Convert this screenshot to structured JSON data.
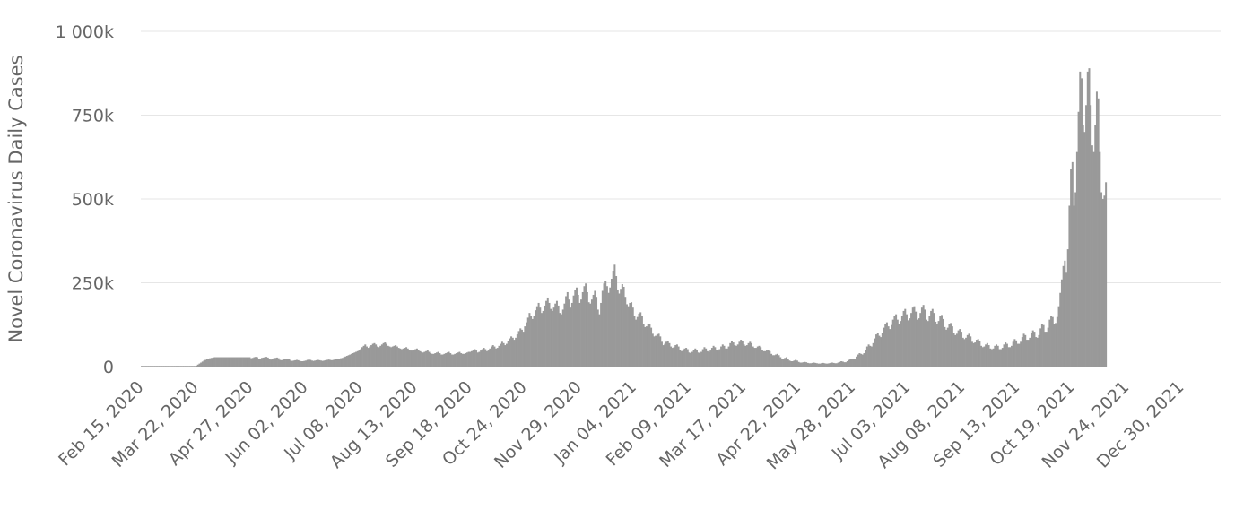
{
  "chart_data": {
    "type": "bar",
    "title": "",
    "xlabel": "",
    "ylabel": "Novel Coronavirus Daily Cases",
    "ylim": [
      0,
      1000000
    ],
    "y_ticks": [
      {
        "value": 0,
        "label": "0"
      },
      {
        "value": 250000,
        "label": "250k"
      },
      {
        "value": 500000,
        "label": "500k"
      },
      {
        "value": 750000,
        "label": "750k"
      },
      {
        "value": 1000000,
        "label": "1 000k"
      }
    ],
    "x_ticks": [
      {
        "date": "2020-02-15",
        "label": "Feb 15, 2020"
      },
      {
        "date": "2020-03-22",
        "label": "Mar 22, 2020"
      },
      {
        "date": "2020-04-27",
        "label": "Apr 27, 2020"
      },
      {
        "date": "2020-06-02",
        "label": "Jun 02, 2020"
      },
      {
        "date": "2020-07-08",
        "label": "Jul 08, 2020"
      },
      {
        "date": "2020-08-13",
        "label": "Aug 13, 2020"
      },
      {
        "date": "2020-09-18",
        "label": "Sep 18, 2020"
      },
      {
        "date": "2020-10-24",
        "label": "Oct 24, 2020"
      },
      {
        "date": "2020-11-29",
        "label": "Nov 29, 2020"
      },
      {
        "date": "2021-01-04",
        "label": "Jan 04, 2021"
      },
      {
        "date": "2021-02-09",
        "label": "Feb 09, 2021"
      },
      {
        "date": "2021-03-17",
        "label": "Mar 17, 2021"
      },
      {
        "date": "2021-04-22",
        "label": "Apr 22, 2021"
      },
      {
        "date": "2021-05-28",
        "label": "May 28, 2021"
      },
      {
        "date": "2021-07-03",
        "label": "Jul 03, 2021"
      },
      {
        "date": "2021-08-08",
        "label": "Aug 08, 2021"
      },
      {
        "date": "2021-09-13",
        "label": "Sep 13, 2021"
      },
      {
        "date": "2021-10-19",
        "label": "Oct 19, 2021"
      },
      {
        "date": "2021-11-24",
        "label": "Nov 24, 2021"
      },
      {
        "date": "2021-12-30",
        "label": "Dec 30, 2021"
      }
    ],
    "grid": true,
    "legend": "none",
    "bar_color": "#999999",
    "series": [
      {
        "x_start": "2020-02-15",
        "x_end": "2022-01-24",
        "sampling": "daily",
        "values": [
          2000,
          2000,
          2000,
          2000,
          2000,
          2000,
          2000,
          2000,
          2000,
          2000,
          2000,
          2000,
          2000,
          2000,
          2000,
          2000,
          2000,
          2000,
          2000,
          2000,
          2000,
          2000,
          2000,
          2000,
          2000,
          2000,
          2000,
          2000,
          2000,
          2000,
          2000,
          2000,
          2000,
          2000,
          2000,
          2000,
          3000,
          6000,
          9000,
          12000,
          15000,
          18000,
          20000,
          22000,
          24000,
          25000,
          26000,
          27000,
          28000,
          28000,
          28000,
          28000,
          28000,
          28000,
          28000,
          28000,
          28000,
          28000,
          28000,
          28000,
          28000,
          28000,
          28000,
          28000,
          28000,
          28000,
          28000,
          28000,
          28000,
          28000,
          28000,
          28000,
          25000,
          26000,
          28000,
          29000,
          28000,
          23000,
          22000,
          26000,
          27000,
          28000,
          29000,
          27000,
          22000,
          21000,
          24000,
          25000,
          26000,
          27000,
          25000,
          20000,
          19000,
          21000,
          22000,
          22000,
          23000,
          22000,
          18000,
          17000,
          18000,
          19000,
          20000,
          19000,
          17000,
          16000,
          16000,
          17000,
          18000,
          20000,
          21000,
          20000,
          18000,
          17000,
          18000,
          19000,
          20000,
          19000,
          18000,
          17000,
          18000,
          19000,
          20000,
          21000,
          20000,
          19000,
          20000,
          21000,
          22000,
          23000,
          24000,
          25000,
          26000,
          28000,
          30000,
          32000,
          34000,
          36000,
          38000,
          40000,
          42000,
          44000,
          46000,
          48000,
          52000,
          58000,
          62000,
          66000,
          60000,
          56000,
          60000,
          64000,
          68000,
          70000,
          66000,
          60000,
          58000,
          62000,
          66000,
          70000,
          72000,
          68000,
          62000,
          60000,
          58000,
          60000,
          62000,
          64000,
          60000,
          56000,
          54000,
          52000,
          54000,
          56000,
          58000,
          54000,
          50000,
          48000,
          48000,
          50000,
          52000,
          54000,
          50000,
          46000,
          44000,
          42000,
          44000,
          46000,
          48000,
          44000,
          40000,
          38000,
          38000,
          40000,
          42000,
          44000,
          40000,
          36000,
          36000,
          38000,
          40000,
          42000,
          44000,
          40000,
          36000,
          36000,
          38000,
          40000,
          42000,
          44000,
          40000,
          38000,
          38000,
          40000,
          42000,
          44000,
          44000,
          46000,
          48000,
          52000,
          48000,
          42000,
          44000,
          48000,
          52000,
          56000,
          52000,
          46000,
          48000,
          54000,
          60000,
          64000,
          60000,
          54000,
          56000,
          62000,
          68000,
          74000,
          70000,
          64000,
          68000,
          76000,
          84000,
          90000,
          86000,
          80000,
          86000,
          96000,
          106000,
          114000,
          110000,
          104000,
          120000,
          132000,
          146000,
          160000,
          150000,
          142000,
          152000,
          168000,
          180000,
          190000,
          176000,
          160000,
          166000,
          182000,
          196000,
          206000,
          190000,
          172000,
          166000,
          176000,
          188000,
          196000,
          182000,
          160000,
          156000,
          170000,
          188000,
          210000,
          222000,
          200000,
          176000,
          190000,
          212000,
          228000,
          236000,
          214000,
          190000,
          200000,
          222000,
          240000,
          248000,
          222000,
          192000,
          188000,
          200000,
          214000,
          226000,
          208000,
          170000,
          156000,
          190000,
          226000,
          248000,
          256000,
          240000,
          220000,
          236000,
          262000,
          286000,
          304000,
          270000,
          230000,
          218000,
          232000,
          246000,
          238000,
          208000,
          186000,
          180000,
          190000,
          192000,
          176000,
          150000,
          140000,
          148000,
          158000,
          162000,
          152000,
          128000,
          118000,
          120000,
          126000,
          128000,
          116000,
          98000,
          90000,
          92000,
          96000,
          98000,
          90000,
          74000,
          64000,
          68000,
          74000,
          76000,
          70000,
          60000,
          56000,
          58000,
          64000,
          66000,
          60000,
          50000,
          46000,
          48000,
          54000,
          56000,
          52000,
          42000,
          40000,
          44000,
          50000,
          54000,
          50000,
          42000,
          40000,
          44000,
          52000,
          58000,
          54000,
          46000,
          44000,
          48000,
          56000,
          62000,
          58000,
          50000,
          48000,
          52000,
          60000,
          66000,
          62000,
          54000,
          54000,
          60000,
          70000,
          76000,
          72000,
          64000,
          62000,
          66000,
          74000,
          80000,
          76000,
          66000,
          62000,
          64000,
          70000,
          74000,
          70000,
          60000,
          56000,
          56000,
          60000,
          62000,
          58000,
          50000,
          46000,
          46000,
          48000,
          50000,
          46000,
          38000,
          34000,
          34000,
          36000,
          38000,
          34000,
          28000,
          24000,
          24000,
          26000,
          28000,
          24000,
          18000,
          16000,
          16000,
          18000,
          20000,
          18000,
          14000,
          12000,
          12000,
          13000,
          14000,
          13000,
          11000,
          10000,
          10000,
          11000,
          12000,
          11000,
          10000,
          9000,
          9000,
          10000,
          11000,
          10000,
          9000,
          9000,
          10000,
          11000,
          12000,
          11000,
          10000,
          10000,
          12000,
          14000,
          16000,
          15000,
          13000,
          13000,
          16000,
          20000,
          24000,
          24000,
          22000,
          24000,
          30000,
          36000,
          40000,
          38000,
          36000,
          40000,
          50000,
          60000,
          66000,
          62000,
          60000,
          70000,
          84000,
          96000,
          100000,
          92000,
          88000,
          100000,
          116000,
          128000,
          132000,
          120000,
          112000,
          124000,
          140000,
          152000,
          156000,
          140000,
          126000,
          136000,
          152000,
          166000,
          172000,
          156000,
          138000,
          144000,
          160000,
          176000,
          180000,
          164000,
          140000,
          144000,
          160000,
          176000,
          184000,
          170000,
          140000,
          136000,
          150000,
          166000,
          172000,
          160000,
          134000,
          126000,
          136000,
          150000,
          154000,
          142000,
          118000,
          110000,
          116000,
          126000,
          130000,
          120000,
          100000,
          94000,
          98000,
          108000,
          112000,
          104000,
          86000,
          82000,
          86000,
          94000,
          98000,
          90000,
          74000,
          70000,
          72000,
          80000,
          82000,
          76000,
          62000,
          58000,
          60000,
          66000,
          70000,
          64000,
          54000,
          52000,
          54000,
          62000,
          66000,
          62000,
          52000,
          52000,
          56000,
          66000,
          72000,
          68000,
          58000,
          58000,
          62000,
          74000,
          82000,
          78000,
          68000,
          68000,
          74000,
          88000,
          98000,
          94000,
          80000,
          80000,
          86000,
          100000,
          108000,
          104000,
          88000,
          86000,
          94000,
          114000,
          128000,
          124000,
          104000,
          104000,
          116000,
          140000,
          152000,
          148000,
          128000,
          130000,
          148000,
          180000,
          220000,
          260000,
          300000,
          316000,
          280000,
          350000,
          480000,
          590000,
          610000,
          480000,
          520000,
          640000,
          760000,
          880000,
          860000,
          720000,
          700000,
          780000,
          880000,
          890000,
          780000,
          660000,
          640000,
          720000,
          820000,
          800000,
          640000,
          520000,
          500000,
          510000,
          550000
        ]
      }
    ]
  }
}
